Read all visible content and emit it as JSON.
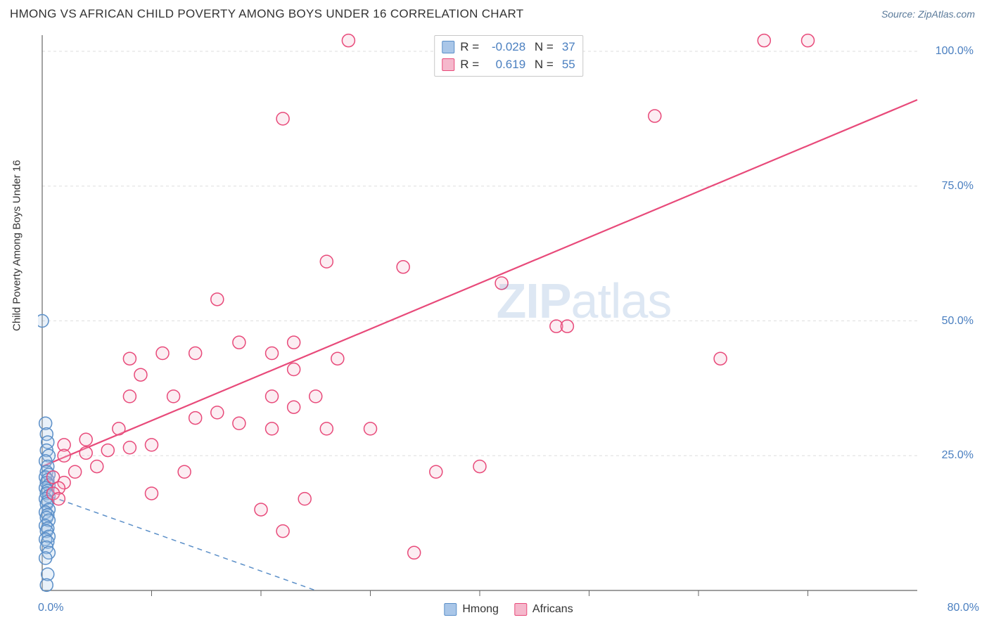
{
  "header": {
    "title": "HMONG VS AFRICAN CHILD POVERTY AMONG BOYS UNDER 16 CORRELATION CHART",
    "source": "Source: ZipAtlas.com"
  },
  "ylabel": "Child Poverty Among Boys Under 16",
  "watermark_prefix": "ZIP",
  "watermark_suffix": "atlas",
  "chart": {
    "type": "scatter",
    "background_color": "#ffffff",
    "grid_color": "#dddddd",
    "axis_color": "#666666",
    "tick_font_color": "#4a7fc0",
    "tick_fontsize": 16,
    "xlim": [
      0,
      80
    ],
    "ylim": [
      0,
      103
    ],
    "xticks_minor": [
      10,
      20,
      30,
      40,
      50,
      60,
      70
    ],
    "yticks": [
      25,
      50,
      75,
      100
    ],
    "xtick_labels": {
      "start": "0.0%",
      "end": "80.0%"
    },
    "ytick_labels": [
      "25.0%",
      "50.0%",
      "75.0%",
      "100.0%"
    ],
    "marker_radius": 9,
    "marker_stroke_width": 1.5,
    "marker_fill_opacity": 0.25,
    "series": [
      {
        "name": "Hmong",
        "color_stroke": "#5b8fc8",
        "color_fill": "#a9c6e8",
        "R": "-0.028",
        "N": "37",
        "trend": {
          "x1": 0,
          "y1": 18,
          "x2": 25,
          "y2": 0,
          "dashed": true,
          "width": 1.5
        },
        "points": [
          [
            0,
            50
          ],
          [
            0.3,
            31
          ],
          [
            0.4,
            29
          ],
          [
            0.5,
            27.5
          ],
          [
            0.4,
            26
          ],
          [
            0.6,
            25
          ],
          [
            0.3,
            24
          ],
          [
            0.5,
            23
          ],
          [
            0.4,
            22
          ],
          [
            0.6,
            21.5
          ],
          [
            0.3,
            21
          ],
          [
            0.5,
            20.5
          ],
          [
            0.4,
            20
          ],
          [
            0.6,
            19.5
          ],
          [
            0.3,
            19
          ],
          [
            0.5,
            18.5
          ],
          [
            0.4,
            18
          ],
          [
            0.6,
            17.5
          ],
          [
            0.3,
            17
          ],
          [
            0.5,
            16.5
          ],
          [
            0.4,
            16
          ],
          [
            0.6,
            15
          ],
          [
            0.3,
            14.5
          ],
          [
            0.5,
            14
          ],
          [
            0.4,
            13.5
          ],
          [
            0.6,
            13
          ],
          [
            0.3,
            12
          ],
          [
            0.5,
            11.5
          ],
          [
            0.4,
            11
          ],
          [
            0.6,
            10
          ],
          [
            0.3,
            9.5
          ],
          [
            0.5,
            9
          ],
          [
            0.4,
            8
          ],
          [
            0.6,
            7
          ],
          [
            0.3,
            6
          ],
          [
            0.5,
            3
          ],
          [
            0.4,
            1
          ]
        ]
      },
      {
        "name": "Africans",
        "color_stroke": "#e84a7a",
        "color_fill": "#f5b8cc",
        "R": "0.619",
        "N": "55",
        "trend": {
          "x1": 0,
          "y1": 23,
          "x2": 80,
          "y2": 91,
          "dashed": false,
          "width": 2.2
        },
        "points": [
          [
            28,
            102
          ],
          [
            66,
            102
          ],
          [
            70,
            102
          ],
          [
            22,
            87.5
          ],
          [
            56,
            88
          ],
          [
            26,
            61
          ],
          [
            33,
            60
          ],
          [
            42,
            57
          ],
          [
            16,
            54
          ],
          [
            47,
            49
          ],
          [
            62,
            43
          ],
          [
            48,
            49
          ],
          [
            8,
            43
          ],
          [
            11,
            44
          ],
          [
            14,
            44
          ],
          [
            18,
            46
          ],
          [
            23,
            46
          ],
          [
            21,
            44
          ],
          [
            23,
            41
          ],
          [
            27,
            43
          ],
          [
            9,
            40
          ],
          [
            12,
            36
          ],
          [
            8,
            36
          ],
          [
            21,
            36
          ],
          [
            23,
            34
          ],
          [
            25,
            36
          ],
          [
            14,
            32
          ],
          [
            16,
            33
          ],
          [
            18,
            31
          ],
          [
            21,
            30
          ],
          [
            26,
            30
          ],
          [
            30,
            30
          ],
          [
            7,
            30
          ],
          [
            4,
            28
          ],
          [
            2,
            27
          ],
          [
            2,
            25
          ],
          [
            4,
            25.5
          ],
          [
            6,
            26
          ],
          [
            8,
            26.5
          ],
          [
            10,
            27
          ],
          [
            5,
            23
          ],
          [
            3,
            22
          ],
          [
            2,
            20
          ],
          [
            1,
            21
          ],
          [
            36,
            22
          ],
          [
            40,
            23
          ],
          [
            13,
            22
          ],
          [
            10,
            18
          ],
          [
            20,
            15
          ],
          [
            24,
            17
          ],
          [
            22,
            11
          ],
          [
            34,
            7
          ],
          [
            1.5,
            19
          ],
          [
            1,
            18
          ],
          [
            1.5,
            17
          ]
        ]
      }
    ]
  },
  "legend_bottom": [
    {
      "label": "Hmong",
      "stroke": "#5b8fc8",
      "fill": "#a9c6e8"
    },
    {
      "label": "Africans",
      "stroke": "#e84a7a",
      "fill": "#f5b8cc"
    }
  ]
}
